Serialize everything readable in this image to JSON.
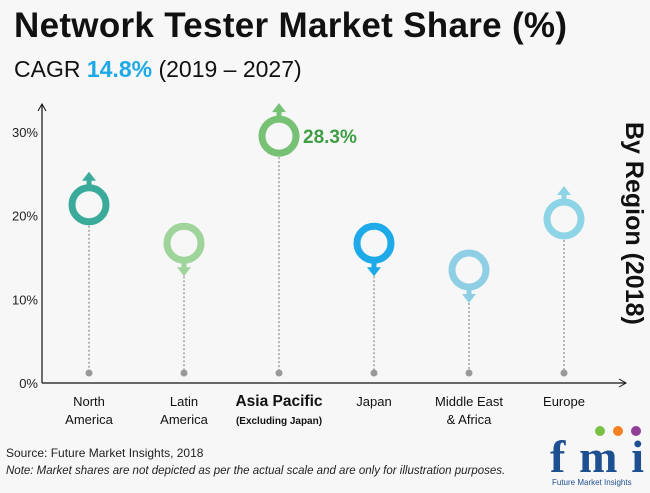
{
  "header": {
    "title": "Network Tester Market Share (%)",
    "cagr_prefix": "CAGR",
    "cagr_value": "14.8%",
    "cagr_period": "(2019 – 2027)",
    "side_label": "By Region (2018)"
  },
  "footer": {
    "source": "Source: Future Market Insights, 2018",
    "note": "Note:  Market shares are not depicted as per the actual scale and are only for illustration purposes.",
    "logo_text": "fmi",
    "logo_sub": "Future Market Insights"
  },
  "chart_data": {
    "type": "scatter",
    "title": "Network Tester Market Share (%)",
    "ylim": [
      0,
      30
    ],
    "yticks": [
      "0%",
      "10%",
      "20%",
      "30%"
    ],
    "ytick_values": [
      0,
      10,
      20,
      30
    ],
    "categories": [
      {
        "line1": "North",
        "line2": "America",
        "value": 21.3,
        "direction": "up",
        "color": "#3aab9b",
        "bold": false
      },
      {
        "line1": "Latin",
        "line2": "America",
        "value": 16.7,
        "direction": "down",
        "color": "#9fd49a",
        "bold": false
      },
      {
        "line1": "Asia Pacific",
        "line2": "(Excluding Japan)",
        "value": 28.3,
        "direction": "up",
        "color": "#76c173",
        "bold": true,
        "label": "28.3%"
      },
      {
        "line1": "Japan",
        "line2": "",
        "value": 16.7,
        "direction": "down",
        "color": "#1ea9e8",
        "bold": false
      },
      {
        "line1": "Middle East",
        "line2": "& Africa",
        "value": 13.5,
        "direction": "down",
        "color": "#8fcfe6",
        "bold": false
      },
      {
        "line1": "Europe",
        "line2": "",
        "value": 19.6,
        "direction": "up",
        "color": "#8dd5e6",
        "bold": false
      }
    ],
    "label_color": "#3f9e45"
  }
}
